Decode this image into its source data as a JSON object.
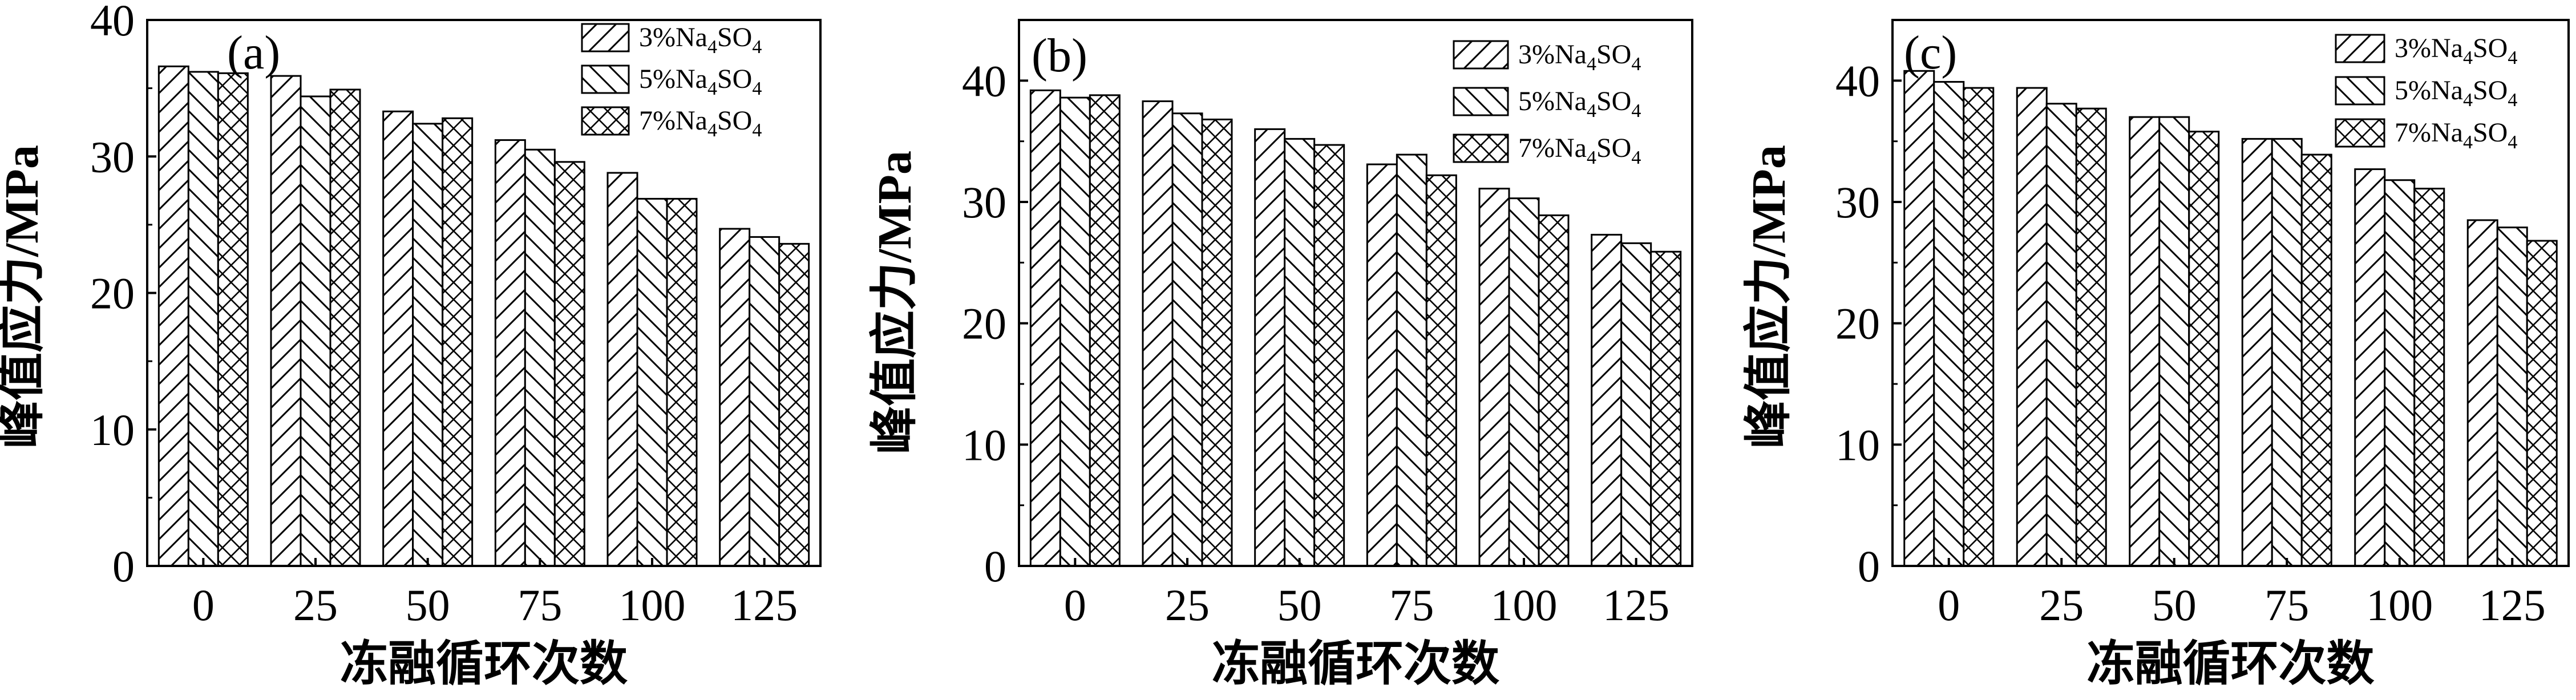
{
  "chart_data": [
    {
      "type": "bar",
      "panel_label": "(a)",
      "xlabel": "冻融循环次数",
      "ylabel": "峰值应力/MPa",
      "categories": [
        "0",
        "25",
        "50",
        "75",
        "100",
        "125"
      ],
      "ylim": [
        0,
        40
      ],
      "yticks": [
        "0",
        "10",
        "20",
        "30",
        "40"
      ],
      "legend_position": "top-right",
      "series": [
        {
          "name": "3%Na4SO4",
          "pattern": "diagonal-forward",
          "values": [
            36.6,
            35.9,
            33.3,
            31.2,
            28.8,
            24.7
          ]
        },
        {
          "name": "5%Na4SO4",
          "pattern": "diagonal-backward",
          "values": [
            36.2,
            34.4,
            32.4,
            30.5,
            26.9,
            24.1
          ]
        },
        {
          "name": "7%Na4SO4",
          "pattern": "crosshatch",
          "values": [
            36.1,
            34.9,
            32.8,
            29.6,
            26.9,
            23.6
          ]
        }
      ]
    },
    {
      "type": "bar",
      "panel_label": "(b)",
      "xlabel": "冻融循环次数",
      "ylabel": "峰值应力/MPa",
      "categories": [
        "0",
        "25",
        "50",
        "75",
        "100",
        "125"
      ],
      "ylim": [
        0,
        45
      ],
      "yticks": [
        "0",
        "10",
        "20",
        "30",
        "40"
      ],
      "legend_position": "top-right",
      "series": [
        {
          "name": "3%Na4SO4",
          "pattern": "diagonal-forward",
          "values": [
            39.2,
            38.3,
            36.0,
            33.1,
            31.1,
            27.3
          ]
        },
        {
          "name": "5%Na4SO4",
          "pattern": "diagonal-backward",
          "values": [
            38.6,
            37.3,
            35.2,
            33.9,
            30.3,
            26.6
          ]
        },
        {
          "name": "7%Na4SO4",
          "pattern": "crosshatch",
          "values": [
            38.8,
            36.8,
            34.7,
            32.2,
            28.9,
            25.9
          ]
        }
      ]
    },
    {
      "type": "bar",
      "panel_label": "(c)",
      "xlabel": "冻融循环次数",
      "ylabel": "峰值应力/MPa",
      "categories": [
        "0",
        "25",
        "50",
        "75",
        "100",
        "125"
      ],
      "ylim": [
        0,
        45
      ],
      "yticks": [
        "0",
        "10",
        "20",
        "30",
        "40"
      ],
      "legend_position": "top-right",
      "series": [
        {
          "name": "3%Na4SO4",
          "pattern": "diagonal-forward",
          "values": [
            40.8,
            39.4,
            37.0,
            35.2,
            32.7,
            28.5
          ]
        },
        {
          "name": "5%Na4SO4",
          "pattern": "diagonal-backward",
          "values": [
            39.9,
            38.1,
            37.0,
            35.2,
            31.8,
            27.9
          ]
        },
        {
          "name": "7%Na4SO4",
          "pattern": "crosshatch",
          "values": [
            39.4,
            37.7,
            35.8,
            33.9,
            31.1,
            26.8
          ]
        }
      ]
    }
  ]
}
